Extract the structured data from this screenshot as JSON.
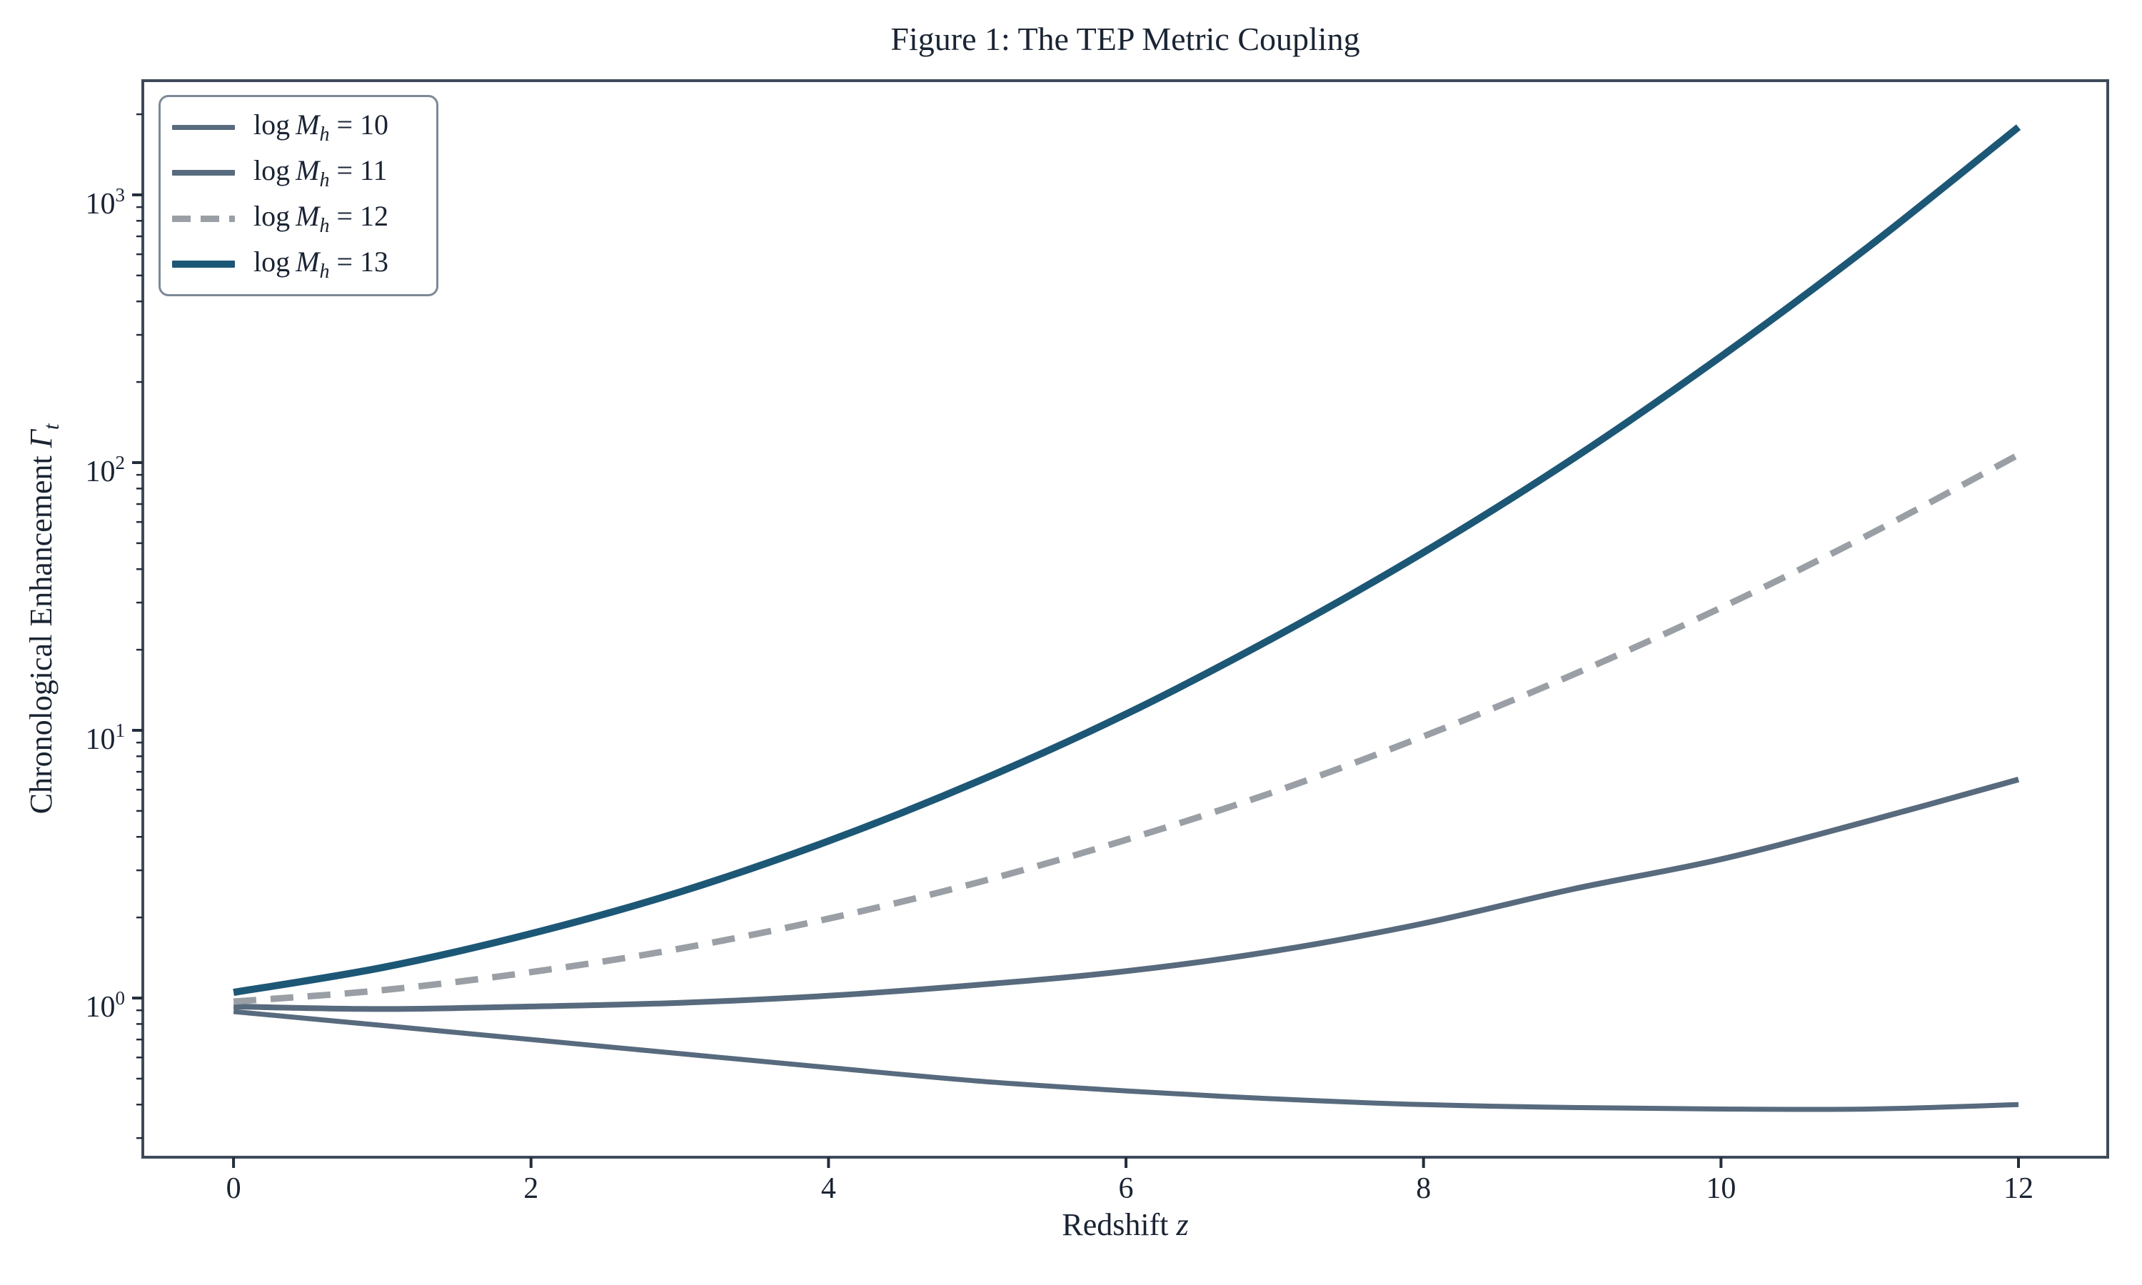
{
  "figure": {
    "background": "#ffffff",
    "text_color": "#1a2433",
    "spine_color": "#3e4a5b",
    "tick_color": "#232d3c",
    "legend_border_color": "#7d8996"
  },
  "labels": {
    "xlabel_text": "Redshift ",
    "xlabel_math": "z",
    "ylabel_text": "Chronological Enhancement ",
    "ylabel_math": "Γ",
    "ylabel_sub": "t"
  },
  "chart_data": {
    "type": "line",
    "title": "Figure 1: The TEP Metric Coupling",
    "xlabel": "Redshift z",
    "ylabel": "Chronological Enhancement Γ_t",
    "yscale": "log",
    "grid": false,
    "legend_position": "upper left",
    "xlim": [
      -0.61,
      12.6
    ],
    "ylim": [
      0.2544,
      2670
    ],
    "x_ticks": [
      0,
      2,
      4,
      6,
      8,
      10,
      12
    ],
    "y_ticks": [
      {
        "base": "10",
        "exp": "0"
      },
      {
        "base": "10",
        "exp": "1"
      },
      {
        "base": "10",
        "exp": "2"
      },
      {
        "base": "10",
        "exp": "3"
      }
    ],
    "x": [
      0,
      1,
      2,
      3,
      4,
      5,
      6,
      7,
      8,
      9,
      10,
      11,
      12
    ],
    "series": [
      {
        "id": "logMh-10",
        "name": "log M_h = 10",
        "legend": {
          "prefix": "log",
          "variable": "M",
          "subscript": "h",
          "value": "= 10"
        },
        "color": "#586a7d",
        "style": "solid",
        "width": 7,
        "values": [
          0.89,
          0.79,
          0.7,
          0.62,
          0.55,
          0.49,
          0.45,
          0.42,
          0.4,
          0.39,
          0.385,
          0.385,
          0.4
        ]
      },
      {
        "id": "logMh-11",
        "name": "log M_h = 11",
        "legend": {
          "prefix": "log",
          "variable": "M",
          "subscript": "h",
          "value": "= 11"
        },
        "color": "#586a7d",
        "style": "solid",
        "width": 8,
        "values": [
          0.93,
          0.91,
          0.93,
          0.96,
          1.02,
          1.12,
          1.26,
          1.5,
          1.9,
          2.55,
          3.3,
          4.6,
          6.55
        ]
      },
      {
        "id": "logMh-12",
        "name": "log M_h = 12",
        "legend": {
          "prefix": "log",
          "variable": "M",
          "subscript": "h",
          "value": "= 12"
        },
        "color": "#999fa5",
        "style": "dashed",
        "width": 9,
        "values": [
          0.97,
          1.07,
          1.25,
          1.53,
          1.98,
          2.7,
          3.9,
          5.9,
          9.5,
          16.1,
          28.7,
          54.0,
          107
        ]
      },
      {
        "id": "logMh-13",
        "name": "log M_h = 13",
        "legend": {
          "prefix": "log",
          "variable": "M",
          "subscript": "h",
          "value": "= 13"
        },
        "color": "#1d5776",
        "style": "solid",
        "width": 10,
        "values": [
          1.05,
          1.3,
          1.74,
          2.49,
          3.86,
          6.43,
          11.5,
          22.3,
          46.2,
          103,
          249,
          645,
          1790
        ]
      }
    ]
  }
}
